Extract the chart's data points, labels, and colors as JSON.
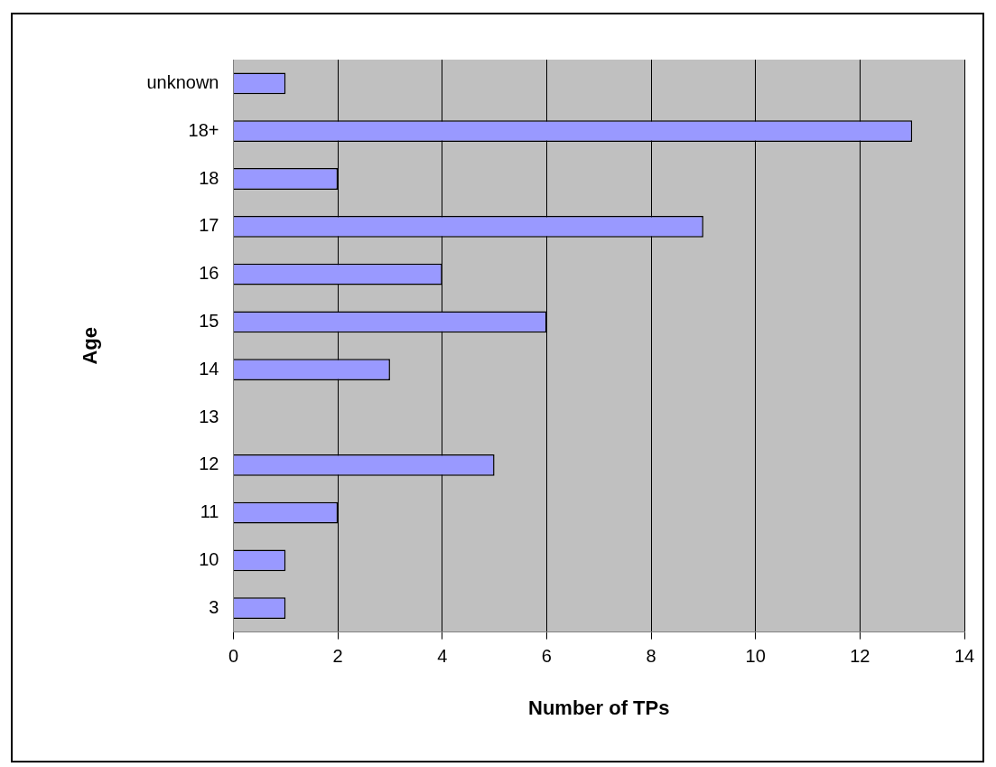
{
  "chart_data": {
    "type": "bar",
    "orientation": "horizontal",
    "xlabel": "Number of TPs",
    "ylabel": "Age",
    "categories": [
      "unknown",
      "18+",
      "18",
      "17",
      "16",
      "15",
      "14",
      "13",
      "12",
      "11",
      "10",
      "3"
    ],
    "values": [
      1,
      13,
      2,
      9,
      4,
      6,
      3,
      0,
      5,
      2,
      1,
      1
    ],
    "color": "#9999ff",
    "xlim": [
      0,
      14
    ],
    "xticks": [
      0,
      2,
      4,
      6,
      8,
      10,
      12,
      14
    ],
    "grid": "x",
    "legend": false
  }
}
